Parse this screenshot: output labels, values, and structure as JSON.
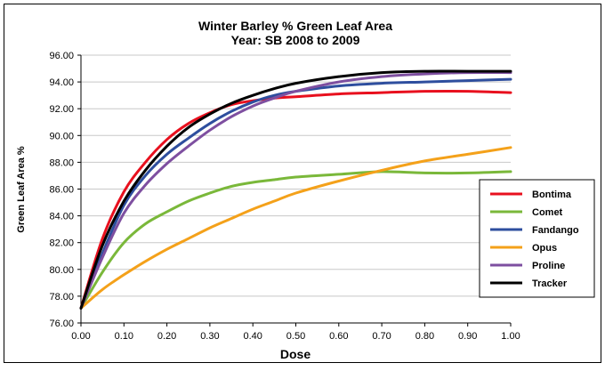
{
  "chart_data": {
    "type": "line",
    "title": "Winter Barley % Green Leaf Area",
    "subtitle": "Year: SB 2008 to 2009",
    "xlabel": "Dose",
    "ylabel": "Green Leaf Area %",
    "xlim": [
      0,
      1
    ],
    "ylim": [
      76,
      96
    ],
    "xticks": [
      "0.00",
      "0.10",
      "0.20",
      "0.30",
      "0.40",
      "0.50",
      "0.60",
      "0.70",
      "0.80",
      "0.90",
      "1.00"
    ],
    "yticks": [
      "76.00",
      "78.00",
      "80.00",
      "82.00",
      "84.00",
      "86.00",
      "88.00",
      "90.00",
      "92.00",
      "94.00",
      "96.00"
    ],
    "grid": true,
    "legend_position": "bottom-right",
    "x": [
      0,
      0.05,
      0.1,
      0.15,
      0.2,
      0.25,
      0.3,
      0.35,
      0.4,
      0.45,
      0.5,
      0.6,
      0.7,
      0.8,
      0.9,
      1.0
    ],
    "series": [
      {
        "name": "Bontima",
        "color": "#e8101e",
        "values": [
          77.1,
          82.3,
          85.8,
          88.0,
          89.7,
          90.9,
          91.7,
          92.3,
          92.6,
          92.8,
          92.9,
          93.1,
          93.2,
          93.3,
          93.3,
          93.2
        ]
      },
      {
        "name": "Comet",
        "color": "#7ab83a",
        "values": [
          77.1,
          79.8,
          82.0,
          83.4,
          84.3,
          85.1,
          85.7,
          86.2,
          86.5,
          86.7,
          86.9,
          87.1,
          87.3,
          87.2,
          87.2,
          87.3
        ]
      },
      {
        "name": "Fandango",
        "color": "#2e4e9e",
        "values": [
          77.1,
          81.2,
          84.8,
          87.0,
          88.6,
          89.8,
          90.9,
          91.8,
          92.5,
          93.0,
          93.3,
          93.7,
          93.9,
          94.0,
          94.1,
          94.2
        ]
      },
      {
        "name": "Opus",
        "color": "#f4a11a",
        "values": [
          77.1,
          78.5,
          79.6,
          80.6,
          81.5,
          82.3,
          83.1,
          83.8,
          84.5,
          85.1,
          85.7,
          86.6,
          87.4,
          88.1,
          88.6,
          89.1
        ]
      },
      {
        "name": "Proline",
        "color": "#7e4fa0",
        "values": [
          77.1,
          80.9,
          84.2,
          86.3,
          87.9,
          89.2,
          90.4,
          91.4,
          92.2,
          92.8,
          93.3,
          94.0,
          94.4,
          94.6,
          94.7,
          94.7
        ]
      },
      {
        "name": "Tracker",
        "color": "#000000",
        "values": [
          77.1,
          81.8,
          85.1,
          87.4,
          89.2,
          90.6,
          91.6,
          92.4,
          93.0,
          93.5,
          93.9,
          94.4,
          94.7,
          94.8,
          94.8,
          94.8
        ]
      }
    ]
  }
}
